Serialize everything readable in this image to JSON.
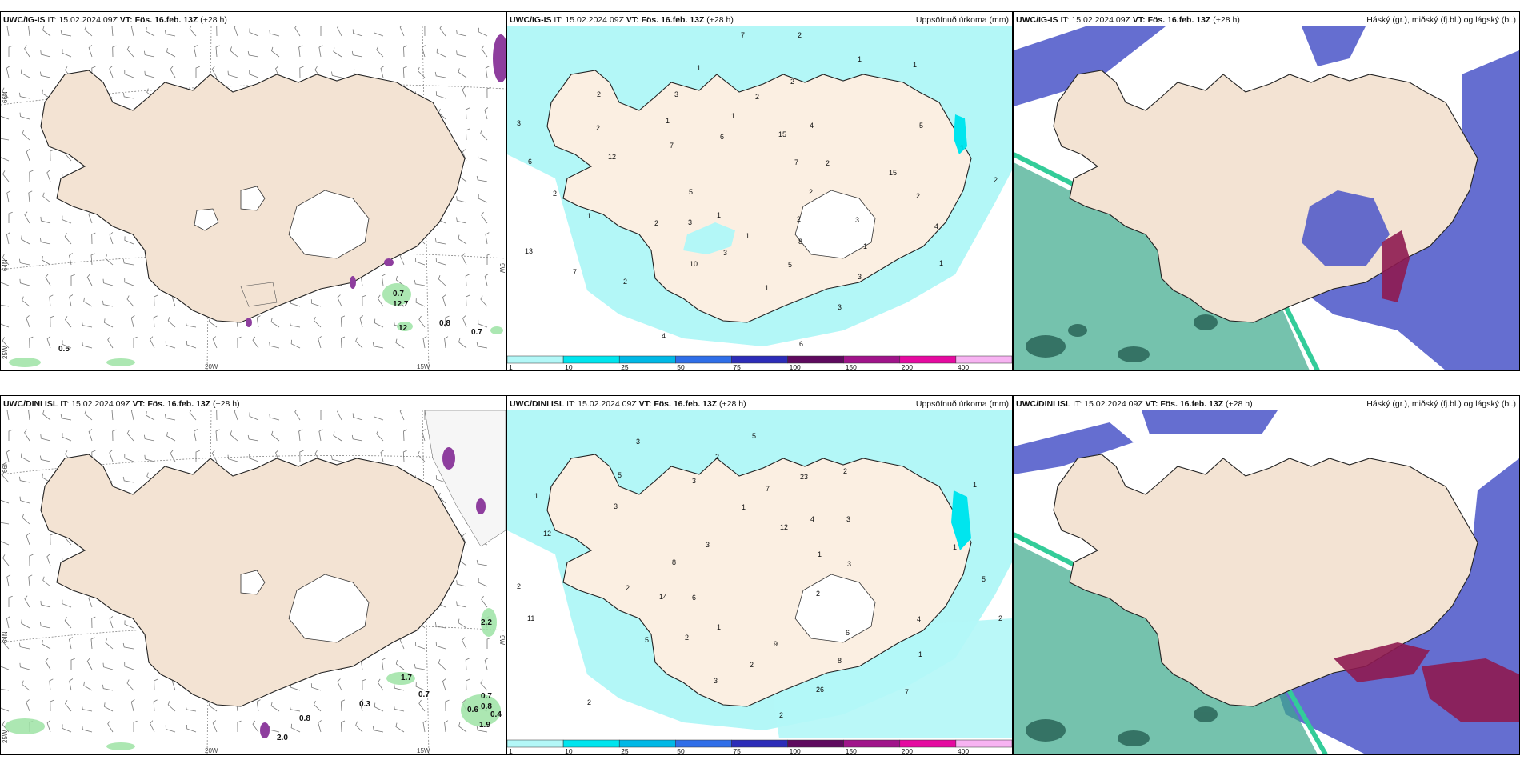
{
  "panels": [
    {
      "model": "UWC/IG-IS",
      "it": "IT: 15.02.2024 09Z",
      "vt_label": "VT:",
      "vt": "Fös. 16.feb. 13Z",
      "lead": "(+28 h)",
      "right": ""
    },
    {
      "model": "UWC/IG-IS",
      "it": "IT: 15.02.2024 09Z",
      "vt_label": "VT:",
      "vt": "Fös. 16.feb. 13Z",
      "lead": "(+28 h)",
      "right": "Uppsöfnuð úrkoma (mm)"
    },
    {
      "model": "UWC/IG-IS",
      "it": "IT: 15.02.2024 09Z",
      "vt_label": "VT:",
      "vt": "Fös. 16.feb. 13Z",
      "lead": "(+28 h)",
      "right": "Háský (gr.), miðský (fj.bl.) og lágský (bl.)"
    },
    {
      "model": "UWC/DINI ISL",
      "it": "IT: 15.02.2024 09Z",
      "vt_label": "VT:",
      "vt": "Fös. 16.feb. 13Z",
      "lead": "(+28 h)",
      "right": ""
    },
    {
      "model": "UWC/DINI ISL",
      "it": "IT: 15.02.2024 09Z",
      "vt_label": "VT:",
      "vt": "Fös. 16.feb. 13Z",
      "lead": "(+28 h)",
      "right": "Uppsöfnuð úrkoma (mm)"
    },
    {
      "model": "UWC/DINI ISL",
      "it": "IT: 15.02.2024 09Z",
      "vt_label": "VT:",
      "vt": "Fös. 16.feb. 13Z",
      "lead": "(+28 h)",
      "right": "Háský (gr.), miðský (fj.bl.) og lágský (bl.)"
    }
  ],
  "axis_labels": {
    "lat66": "66N",
    "lat64": "64N",
    "lon25": "25W",
    "lon20": "20W",
    "lon15": "15W",
    "lon9": "9W"
  },
  "colorbar": {
    "labels": [
      "1",
      "10",
      "25",
      "50",
      "75",
      "100",
      "150",
      "200",
      "400"
    ],
    "colors": [
      "#b3f7f7",
      "#00e5ee",
      "#00b8e6",
      "#2f6ee8",
      "#2c2cb8",
      "#5e0a5e",
      "#a0148a",
      "#e50aa0",
      "#f7b3f2"
    ]
  },
  "wind_values_top": [
    "0.5",
    "0.7",
    "12.7",
    "12",
    "0.8",
    "0.7"
  ],
  "wind_values_bottom": [
    "2.2",
    "1.7",
    "0.7",
    "0.7",
    "0.8",
    "0.6",
    "0.4",
    "1.9",
    "0.8",
    "2.0",
    "0.3"
  ],
  "precip_values_top": [
    "2",
    "2",
    "2",
    "3",
    "3",
    "2",
    "10",
    "1",
    "1",
    "5",
    "4",
    "1",
    "2",
    "2",
    "3",
    "2",
    "3",
    "6",
    "7",
    "3",
    "3",
    "4",
    "13",
    "15",
    "5",
    "2",
    "1",
    "1",
    "1",
    "1",
    "2",
    "1",
    "1",
    "1",
    "2",
    "7",
    "2",
    "8",
    "12",
    "5",
    "4",
    "6",
    "3",
    "1",
    "1",
    "6",
    "7",
    "15",
    "2",
    "7",
    "2"
  ],
  "precip_values_bottom": [
    "2",
    "2",
    "2",
    "2",
    "3",
    "3",
    "5",
    "5",
    "7",
    "8",
    "3",
    "3",
    "3",
    "2",
    "14",
    "23",
    "26",
    "1",
    "1",
    "2",
    "2",
    "1",
    "2",
    "4",
    "2",
    "5",
    "5",
    "6",
    "7",
    "8",
    "12",
    "1",
    "1",
    "3",
    "4",
    "11",
    "12",
    "9",
    "3",
    "1",
    "2",
    "1",
    "6"
  ],
  "colors": {
    "land": "#f3e3d3",
    "ocean": "#ffffff",
    "precip_light": "#b3f7f7",
    "precip_mid": "#00e5ee",
    "cloud_high": "#7fd9b0",
    "cloud_mid": "#4a55c8",
    "cloud_low": "#8e1a50"
  }
}
